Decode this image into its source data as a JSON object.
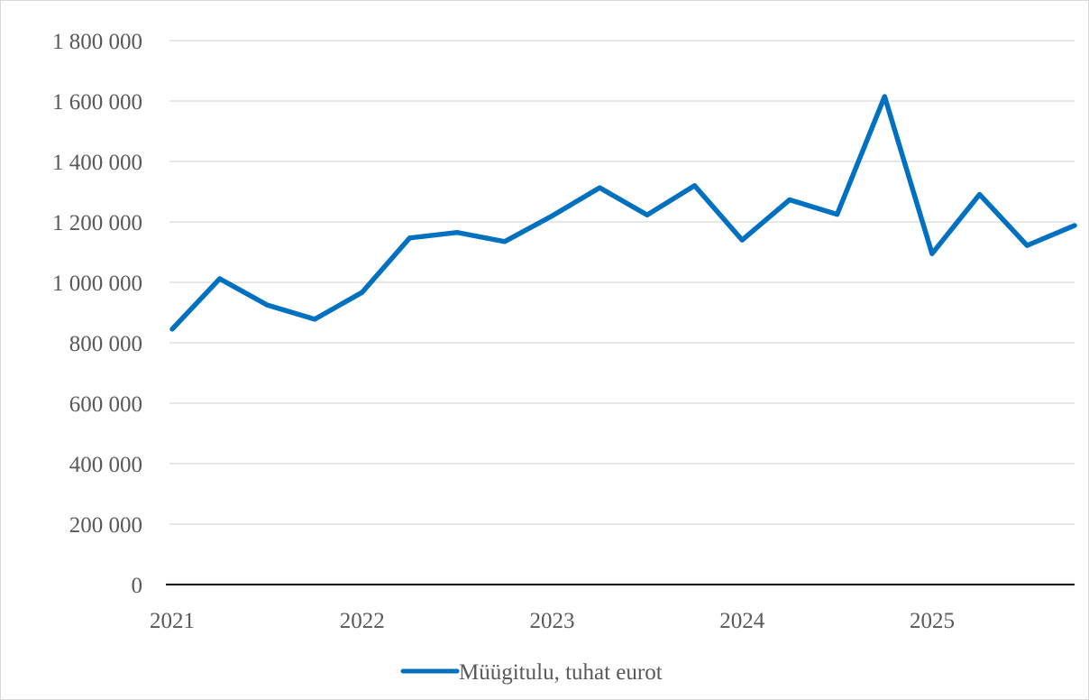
{
  "chart_data": {
    "type": "line",
    "title": "",
    "xlabel": "",
    "ylabel": "",
    "x_tick_labels": [
      "2021",
      "2022",
      "2023",
      "2024",
      "2025"
    ],
    "y_tick_labels": [
      "0",
      "200 000",
      "400 000",
      "600 000",
      "800 000",
      "1 000 000",
      "1 200 000",
      "1 400 000",
      "1 600 000",
      "1 800 000"
    ],
    "ylim": [
      0,
      1800000
    ],
    "x": [
      "2021 Q1",
      "2021 Q2",
      "2021 Q3",
      "2021 Q4",
      "2022 Q1",
      "2022 Q2",
      "2022 Q3",
      "2022 Q4",
      "2023 Q1",
      "2023 Q2",
      "2023 Q3",
      "2023 Q4",
      "2024 Q1",
      "2024 Q2",
      "2024 Q3",
      "2024 Q4",
      "2025 Q1",
      "2025 Q2",
      "2025 Q3",
      "2025 Q4"
    ],
    "series": [
      {
        "name": "Müügitulu, tuhat eurot",
        "color": "#0070c0",
        "values": [
          845000,
          1012000,
          925000,
          878000,
          967000,
          1147000,
          1165000,
          1135000,
          1220000,
          1313000,
          1223000,
          1320000,
          1140000,
          1273000,
          1225000,
          1615000,
          1095000,
          1291000,
          1122000,
          1188000
        ]
      }
    ],
    "grid": true,
    "legend_position": "bottom"
  }
}
